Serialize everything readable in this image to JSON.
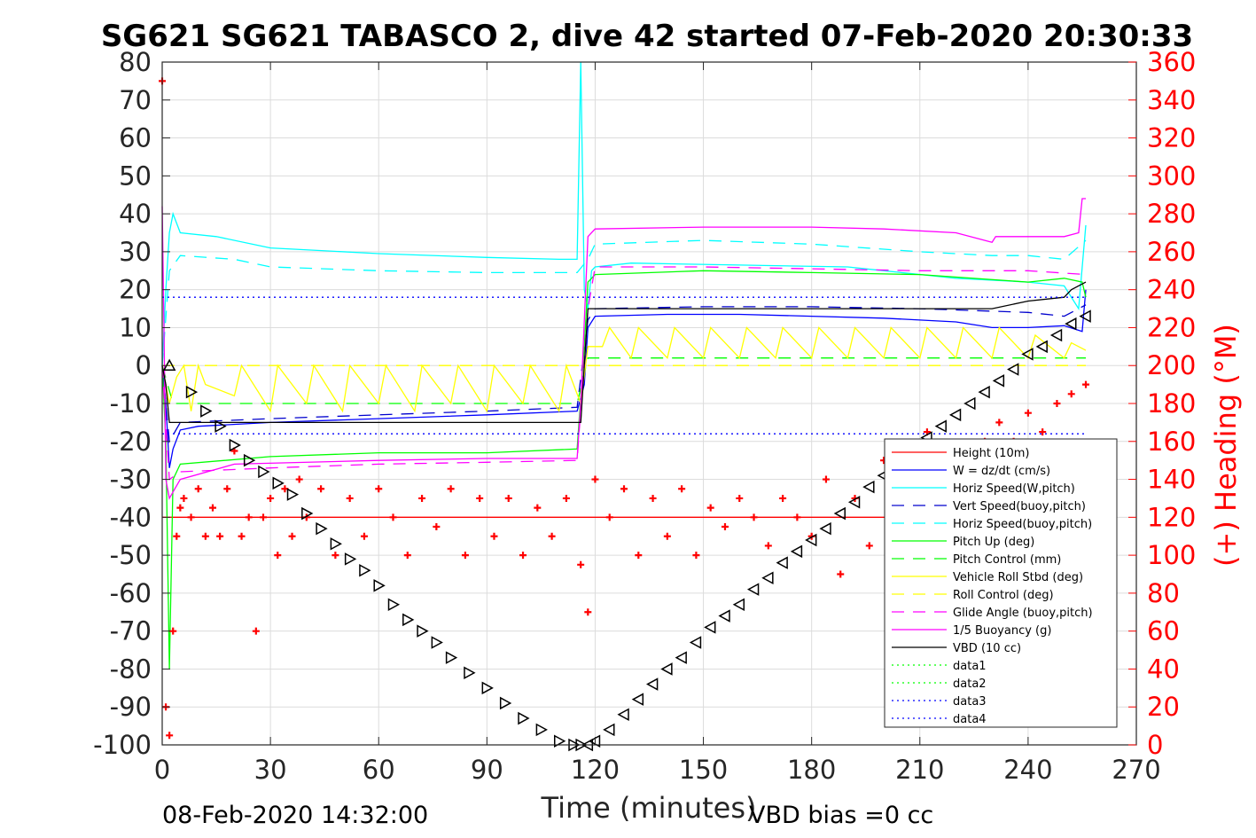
{
  "chart_data": {
    "type": "line",
    "title": "SG621 SG621 TABASCO 2, dive 42 started 07-Feb-2020 20:30:33",
    "xlabel": "Time (minutes)",
    "ylabel": "",
    "y2label": "(+) Heading (°M)",
    "xlim": [
      0,
      270
    ],
    "ylim": [
      -100,
      80
    ],
    "y2lim": [
      0,
      360
    ],
    "xticks": [
      0,
      30,
      60,
      90,
      120,
      150,
      180,
      210,
      240,
      270
    ],
    "yticks": [
      -100,
      -90,
      -80,
      -70,
      -60,
      -50,
      -40,
      -30,
      -20,
      -10,
      0,
      10,
      20,
      30,
      40,
      50,
      60,
      70,
      80
    ],
    "y2ticks": [
      0,
      20,
      40,
      60,
      80,
      100,
      120,
      140,
      160,
      180,
      200,
      220,
      240,
      260,
      280,
      300,
      320,
      340,
      360
    ],
    "grid": true,
    "legend_position": "bottom-right",
    "footer_left": "08-Feb-2020 14:32:00",
    "footer_right": "VBD bias =0 cc",
    "series": [
      {
        "name": "Height (10m)",
        "color": "#ff0000",
        "dash": "",
        "x": [
          0,
          256
        ],
        "y": [
          -40,
          -40
        ]
      },
      {
        "name": "W = dz/dt (cm/s)",
        "color": "#0000ff",
        "dash": "",
        "x": [
          0,
          1,
          2,
          3,
          5,
          10,
          30,
          60,
          90,
          115,
          117,
          118,
          120,
          140,
          160,
          180,
          200,
          220,
          230,
          240,
          250,
          255,
          256
        ],
        "y": [
          0,
          -10,
          -27,
          -22,
          -17,
          -16,
          -15,
          -14,
          -13,
          -12,
          -5,
          10,
          13,
          13.5,
          13.5,
          13,
          12.5,
          11.5,
          10,
          10,
          10.5,
          9,
          20
        ]
      },
      {
        "name": "Horiz Speed(W,pitch)",
        "color": "#00ffff",
        "dash": "",
        "x": [
          0,
          1,
          2,
          3,
          5,
          15,
          30,
          60,
          90,
          110,
          115,
          116,
          117,
          118,
          119,
          120,
          130,
          160,
          190,
          200,
          220,
          240,
          250,
          254,
          256
        ],
        "y": [
          0,
          20,
          35,
          40,
          35,
          34,
          31,
          29.5,
          28.5,
          28,
          28,
          80,
          20,
          15,
          25,
          26,
          27,
          26.5,
          26,
          25,
          23,
          22,
          21,
          15,
          37
        ]
      },
      {
        "name": "Vert Speed(buoy,pitch)",
        "color": "#0000cd",
        "dash": "14 10",
        "x": [
          0,
          2,
          5,
          30,
          60,
          90,
          115,
          118,
          120,
          150,
          180,
          210,
          240,
          250,
          256
        ],
        "y": [
          0,
          -20,
          -15,
          -14,
          -13,
          -12,
          -11,
          12,
          15,
          15.5,
          15.5,
          15,
          14,
          13,
          16
        ]
      },
      {
        "name": "Horiz Speed(buoy,pitch)",
        "color": "#00ffff",
        "dash": "14 10",
        "x": [
          0,
          2,
          5,
          20,
          30,
          60,
          90,
          115,
          118,
          120,
          150,
          180,
          210,
          230,
          240,
          250,
          256
        ],
        "y": [
          0,
          25,
          29,
          28,
          26,
          25,
          24.5,
          24.5,
          28,
          32,
          33,
          32,
          30,
          29,
          29,
          28,
          33
        ]
      },
      {
        "name": "Pitch Up (deg)",
        "color": "#00ff00",
        "dash": "",
        "x": [
          0,
          1,
          2,
          3,
          5,
          30,
          60,
          90,
          115,
          117,
          118,
          120,
          150,
          180,
          210,
          240,
          250,
          255,
          256
        ],
        "y": [
          0,
          -20,
          -80,
          -30,
          -26,
          -24,
          -23,
          -23,
          -22,
          5,
          22,
          24,
          25,
          24.5,
          24,
          22,
          23,
          22,
          18
        ]
      },
      {
        "name": "Pitch Control (mm)",
        "color": "#00ff00",
        "dash": "14 10",
        "x": [
          0,
          3,
          10,
          60,
          115,
          118,
          120,
          200,
          256
        ],
        "y": [
          0,
          -10,
          -10,
          -10,
          -10,
          2,
          2,
          2,
          2
        ]
      },
      {
        "name": "Vehicle Roll Stbd (deg)",
        "color": "#ffff00",
        "dash": "",
        "x": [
          0,
          2,
          4,
          6,
          8,
          10,
          12,
          20,
          22,
          30,
          32,
          40,
          42,
          50,
          52,
          60,
          62,
          70,
          72,
          80,
          82,
          90,
          92,
          100,
          102,
          110,
          112,
          116,
          118,
          122,
          124,
          130,
          132,
          140,
          142,
          150,
          152,
          160,
          162,
          170,
          172,
          180,
          182,
          190,
          192,
          200,
          202,
          210,
          212,
          220,
          222,
          230,
          232,
          240,
          242,
          250,
          252,
          256
        ],
        "y": [
          0,
          -10,
          -3,
          0,
          -12,
          0,
          -5,
          -8,
          0,
          -12,
          0,
          -10,
          0,
          -12,
          0,
          -10,
          0,
          -12,
          0,
          -10,
          0,
          -12,
          0,
          -10,
          0,
          -12,
          0,
          -10,
          5,
          5,
          10,
          2,
          10,
          2,
          10,
          2,
          10,
          2,
          10,
          2,
          10,
          2,
          10,
          2,
          10,
          2,
          10,
          2,
          10,
          2,
          10,
          2,
          10,
          2,
          8,
          2,
          6,
          4
        ]
      },
      {
        "name": "Roll Control (deg)",
        "color": "#ffff00",
        "dash": "14 10",
        "x": [
          0,
          256
        ],
        "y": [
          0,
          0
        ]
      },
      {
        "name": "Glide Angle (buoy,pitch)",
        "color": "#ff00ff",
        "dash": "14 10",
        "x": [
          0,
          2,
          5,
          30,
          60,
          90,
          115,
          118,
          120,
          150,
          180,
          210,
          240,
          256
        ],
        "y": [
          0,
          -30,
          -28,
          -27,
          -26,
          -25.5,
          -25,
          15,
          26,
          26,
          25.5,
          25,
          25,
          24
        ]
      },
      {
        "name": "1/5 Buoyancy (g)",
        "color": "#ff00ff",
        "dash": "",
        "x": [
          0,
          0.5,
          1,
          2,
          5,
          20,
          60,
          90,
          115,
          116,
          118,
          120,
          150,
          180,
          200,
          220,
          230,
          231,
          240,
          250,
          254,
          255,
          256
        ],
        "y": [
          42,
          10,
          -30,
          -35,
          -30,
          -26,
          -25,
          -24.5,
          -24.5,
          -10,
          34,
          36,
          36.5,
          36.5,
          36,
          35,
          32.5,
          34,
          34,
          34,
          35,
          44,
          44
        ]
      },
      {
        "name": "VBD (10 cc)",
        "color": "#000000",
        "dash": "",
        "x": [
          0,
          1,
          2,
          5,
          116,
          117,
          118,
          200,
          230,
          240,
          250,
          252,
          256
        ],
        "y": [
          0,
          -5,
          -15,
          -15,
          -15,
          0,
          15,
          15,
          15,
          17,
          18,
          20,
          22
        ]
      },
      {
        "name": "data1",
        "color": "#00ff00",
        "dash": "2 4",
        "x": [],
        "y": []
      },
      {
        "name": "data2",
        "color": "#00ff00",
        "dash": "2 4",
        "x": [],
        "y": []
      },
      {
        "name": "data3",
        "color": "#0000ff",
        "dash": "2 4",
        "x": [
          0,
          256
        ],
        "y": [
          18,
          18
        ]
      },
      {
        "name": "data4",
        "color": "#0000ff",
        "dash": "2 4",
        "x": [
          0,
          256
        ],
        "y": [
          -18,
          -18
        ]
      }
    ],
    "depth_markers": {
      "color": "#000000",
      "x": [
        2,
        8,
        12,
        16,
        20,
        24,
        28,
        32,
        36,
        40,
        44,
        48,
        52,
        56,
        60,
        64,
        68,
        72,
        76,
        80,
        85,
        90,
        95,
        100,
        105,
        110,
        114,
        116,
        118,
        120,
        124,
        128,
        132,
        136,
        140,
        144,
        148,
        152,
        156,
        160,
        164,
        168,
        172,
        176,
        180,
        184,
        188,
        192,
        196,
        200,
        204,
        208,
        212,
        216,
        220,
        224,
        228,
        232,
        236,
        240,
        244,
        248,
        252,
        256
      ],
      "y": [
        0,
        -7,
        -12,
        -16,
        -21,
        -25,
        -28,
        -31,
        -34,
        -39,
        -43,
        -47,
        -51,
        -54,
        -58,
        -63,
        -67,
        -70,
        -73,
        -77,
        -81,
        -85,
        -89,
        -93,
        -96,
        -99,
        -100,
        -100,
        -100,
        -99,
        -96,
        -92,
        -88,
        -84,
        -80,
        -77,
        -73,
        -69,
        -66,
        -63,
        -59,
        -56,
        -52,
        -49,
        -46,
        -43,
        -39,
        -36,
        -32,
        -29,
        -26,
        -23,
        -19,
        -16,
        -13,
        -10,
        -7,
        -4,
        -1,
        3,
        5,
        8,
        11,
        13
      ]
    },
    "heading": {
      "color": "#ff0000",
      "x": [
        0,
        1,
        2,
        3,
        4,
        5,
        6,
        8,
        10,
        12,
        14,
        16,
        18,
        20,
        22,
        24,
        26,
        28,
        30,
        32,
        34,
        36,
        38,
        40,
        44,
        48,
        52,
        56,
        60,
        64,
        68,
        72,
        76,
        80,
        84,
        88,
        92,
        96,
        100,
        104,
        108,
        112,
        116,
        118,
        120,
        124,
        128,
        132,
        136,
        140,
        144,
        148,
        152,
        156,
        160,
        164,
        168,
        172,
        176,
        180,
        184,
        188,
        192,
        196,
        200,
        204,
        208,
        212,
        216,
        220,
        224,
        228,
        232,
        236,
        240,
        244,
        248,
        252,
        256
      ],
      "y": [
        350,
        20,
        5,
        60,
        110,
        125,
        130,
        120,
        135,
        110,
        125,
        110,
        135,
        155,
        110,
        120,
        60,
        120,
        130,
        100,
        135,
        110,
        140,
        120,
        135,
        100,
        130,
        110,
        135,
        120,
        100,
        130,
        115,
        135,
        100,
        130,
        110,
        130,
        100,
        125,
        110,
        130,
        95,
        70,
        140,
        120,
        135,
        100,
        130,
        110,
        135,
        100,
        125,
        115,
        130,
        120,
        105,
        130,
        120,
        110,
        140,
        90,
        130,
        105,
        150,
        120,
        100,
        165,
        130,
        150,
        140,
        160,
        170,
        160,
        175,
        165,
        180,
        185,
        190
      ]
    }
  }
}
